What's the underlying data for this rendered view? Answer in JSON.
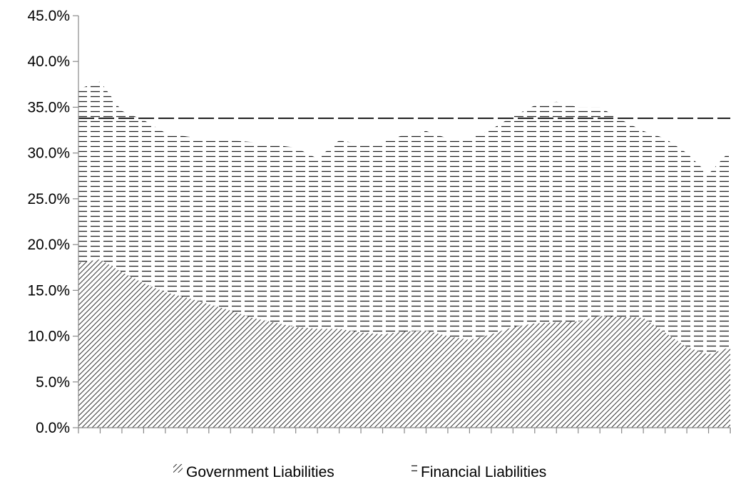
{
  "chart_data": {
    "type": "area",
    "stacked": true,
    "title": "",
    "xlabel": "",
    "ylabel": "",
    "ylim": [
      0,
      45
    ],
    "yticks": [
      "0.0%",
      "5.0%",
      "10.0%",
      "15.0%",
      "20.0%",
      "25.0%",
      "30.0%",
      "35.0%",
      "40.0%",
      "45.0%"
    ],
    "grid": false,
    "legend": "bottom",
    "x_count": 31,
    "series": [
      {
        "name": "Government Liabilities",
        "pattern": "diagonal-hatch",
        "values": [
          18.0,
          18.4,
          17.0,
          15.8,
          14.8,
          14.2,
          13.5,
          12.8,
          12.0,
          11.5,
          11.0,
          10.8,
          10.8,
          10.4,
          10.2,
          10.5,
          10.6,
          10.0,
          9.6,
          10.2,
          11.0,
          11.4,
          11.5,
          11.6,
          12.2,
          12.1,
          12.0,
          10.4,
          8.8,
          8.0,
          8.8
        ]
      },
      {
        "name": "Financial Liabilities",
        "pattern": "horizontal-dash",
        "values": [
          19.0,
          19.4,
          17.6,
          17.8,
          17.4,
          17.6,
          18.0,
          18.6,
          19.2,
          19.4,
          19.6,
          18.6,
          20.6,
          20.6,
          21.0,
          21.5,
          21.8,
          21.6,
          22.0,
          22.4,
          23.0,
          23.8,
          24.1,
          23.4,
          22.8,
          21.5,
          20.4,
          21.2,
          21.2,
          19.7,
          21.5
        ]
      },
      {
        "name": "",
        "type": "line",
        "style": "dashed",
        "values": [
          33.8,
          33.8
        ]
      }
    ]
  }
}
